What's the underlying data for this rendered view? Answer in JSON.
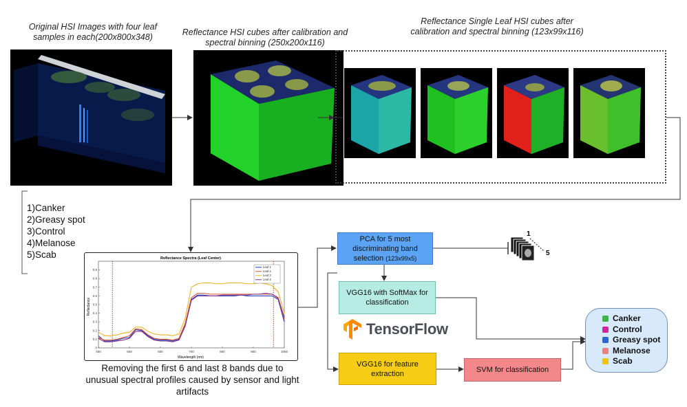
{
  "captions": {
    "original": "Original HSI Images with four leaf samples in each(200x800x348)",
    "calibrated": "Reflectance HSI cubes after calibration and spectral binning  (250x200x116)",
    "single": "Reflectance Single Leaf HSI cubes after calibration and spectral binning  (123x99x116)",
    "removal": "Removing the first 6 and last 8 bands due to unusual spectral profiles caused by sensor and light artifacts"
  },
  "classes_list": [
    "1)Canker",
    "2)Greasy spot",
    "3)Control",
    "4)Melanose",
    "5)Scab"
  ],
  "boxes": {
    "pca_main": "PCA for 5 most discriminating band selection",
    "pca_dims": "(123x99x5)",
    "vgg_softmax": "VGG16  with SoftMax for classification",
    "vgg_feature": "VGG16 for feature extraction",
    "svm": "SVM for classification"
  },
  "stack_labels": {
    "first": "1",
    "last": "5"
  },
  "logo": {
    "text": "TensorFlow"
  },
  "legend": [
    {
      "label": "Canker",
      "color": "#3cb54a"
    },
    {
      "label": "Control",
      "color": "#d6249f"
    },
    {
      "label": "Greasy spot",
      "color": "#2a66d9"
    },
    {
      "label": "Melanose",
      "color": "#f08080"
    },
    {
      "label": "Scab",
      "color": "#f2c500"
    }
  ],
  "chart_data": {
    "type": "line",
    "title": "Reflectance Spectra (Leaf Center)",
    "xlabel": "Wavelength (nm)",
    "ylabel": "Reflectance",
    "xlim": [
      400,
      1000
    ],
    "ylim": [
      0,
      1
    ],
    "xticks": [
      400,
      500,
      600,
      700,
      800,
      900,
      1000
    ],
    "yticks": [
      0,
      0.1,
      0.2,
      0.3,
      0.4,
      0.5,
      0.6,
      0.7,
      0.8,
      0.9
    ],
    "grid": false,
    "legend_position": "top-right",
    "x": [
      400,
      420,
      440,
      460,
      480,
      500,
      520,
      540,
      560,
      580,
      600,
      620,
      640,
      660,
      680,
      700,
      720,
      740,
      760,
      780,
      800,
      820,
      840,
      860,
      880,
      900,
      920,
      940,
      960,
      980,
      1000
    ],
    "series": [
      {
        "name": "Leaf 1",
        "color": "#1f3fbf",
        "values": [
          0.14,
          0.08,
          0.08,
          0.09,
          0.11,
          0.12,
          0.21,
          0.2,
          0.14,
          0.1,
          0.09,
          0.09,
          0.08,
          0.1,
          0.26,
          0.56,
          0.61,
          0.61,
          0.6,
          0.6,
          0.6,
          0.6,
          0.6,
          0.61,
          0.6,
          0.6,
          0.6,
          0.6,
          0.6,
          0.56,
          0.3
        ]
      },
      {
        "name": "Leaf 2",
        "color": "#d9532c",
        "values": [
          0.12,
          0.09,
          0.09,
          0.1,
          0.12,
          0.14,
          0.22,
          0.21,
          0.15,
          0.11,
          0.1,
          0.1,
          0.09,
          0.11,
          0.28,
          0.58,
          0.63,
          0.63,
          0.62,
          0.62,
          0.62,
          0.62,
          0.62,
          0.62,
          0.62,
          0.62,
          0.62,
          0.62,
          0.62,
          0.57,
          0.33
        ]
      },
      {
        "name": "Leaf 3",
        "color": "#edb120",
        "values": [
          0.18,
          0.14,
          0.14,
          0.15,
          0.17,
          0.18,
          0.24,
          0.24,
          0.19,
          0.16,
          0.15,
          0.15,
          0.14,
          0.16,
          0.34,
          0.7,
          0.74,
          0.75,
          0.75,
          0.74,
          0.74,
          0.75,
          0.75,
          0.75,
          0.74,
          0.74,
          0.75,
          0.74,
          0.72,
          0.65,
          0.4
        ]
      },
      {
        "name": "Leaf 4",
        "color": "#7e2f8e",
        "values": [
          0.11,
          0.07,
          0.07,
          0.08,
          0.09,
          0.11,
          0.19,
          0.19,
          0.13,
          0.09,
          0.08,
          0.08,
          0.07,
          0.09,
          0.25,
          0.55,
          0.6,
          0.6,
          0.6,
          0.6,
          0.61,
          0.61,
          0.61,
          0.61,
          0.61,
          0.62,
          0.62,
          0.63,
          0.62,
          0.58,
          0.35
        ]
      }
    ],
    "cutoffs_nm": [
      445,
      965
    ]
  }
}
